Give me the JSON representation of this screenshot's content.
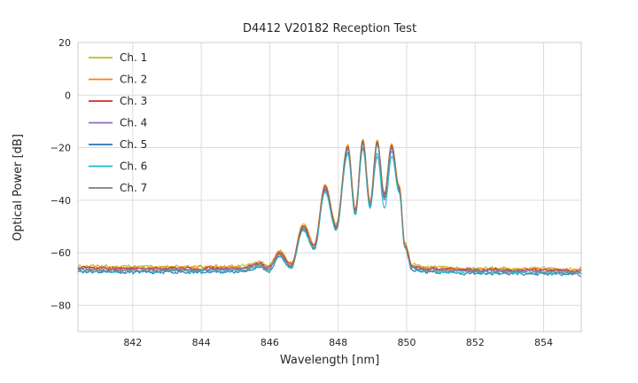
{
  "title": "D4412 V20182 Reception Test",
  "chart_data": {
    "type": "line",
    "title": "D4412 V20182 Reception Test",
    "xlabel": "Wavelength [nm]",
    "ylabel": "Optical Power [dB]",
    "xlim": [
      840.4,
      855.1
    ],
    "ylim": [
      -90,
      20
    ],
    "xticks": [
      842,
      844,
      846,
      848,
      850,
      852,
      854
    ],
    "yticks": [
      20,
      0,
      -20,
      -40,
      -60,
      -80
    ],
    "xtick_labels": [
      "842",
      "844",
      "846",
      "848",
      "850",
      "852",
      "854"
    ],
    "ytick_labels": [
      "20",
      "0",
      "−20",
      "−40",
      "−60",
      "−80"
    ],
    "grid": true,
    "legend_position": "upper left",
    "noise_floor_db": -66,
    "noise_amplitude_db": 0.45,
    "base_curve_control_points": [
      [
        840.4,
        -66.0
      ],
      [
        842.0,
        -66.2
      ],
      [
        844.0,
        -66.1
      ],
      [
        845.2,
        -66.0
      ],
      [
        845.7,
        -64.3
      ],
      [
        845.95,
        -65.8
      ],
      [
        846.3,
        -60.2
      ],
      [
        846.62,
        -64.8
      ],
      [
        846.98,
        -49.8
      ],
      [
        847.3,
        -57.5
      ],
      [
        847.62,
        -34.8
      ],
      [
        847.94,
        -50.0
      ],
      [
        848.28,
        -19.6
      ],
      [
        848.5,
        -44.0
      ],
      [
        848.72,
        -17.6
      ],
      [
        848.93,
        -41.0
      ],
      [
        849.14,
        -17.9
      ],
      [
        849.35,
        -38.0
      ],
      [
        849.56,
        -19.2
      ],
      [
        849.78,
        -35.0
      ],
      [
        849.95,
        -57.0
      ],
      [
        850.15,
        -65.2
      ],
      [
        850.6,
        -66.3
      ],
      [
        852.0,
        -66.6
      ],
      [
        854.0,
        -66.8
      ],
      [
        855.1,
        -67.0
      ]
    ],
    "series": [
      {
        "name": "Ch. 1",
        "color": "#bcbd22",
        "floor_offset_db": 0.9,
        "peak_offset_db": 0.8,
        "notch": null
      },
      {
        "name": "Ch. 2",
        "color": "#ff7f0e",
        "floor_offset_db": 0.4,
        "peak_offset_db": 0.4,
        "notch": null
      },
      {
        "name": "Ch. 3",
        "color": "#d62728",
        "floor_offset_db": 0.1,
        "peak_offset_db": 0.0,
        "notch": null
      },
      {
        "name": "Ch. 4",
        "color": "#9467bd",
        "floor_offset_db": -0.2,
        "peak_offset_db": -2.2,
        "notch": {
          "center_nm": 849.14,
          "sigma_nm": 0.16,
          "depth_db": 3.5
        }
      },
      {
        "name": "Ch. 5",
        "color": "#1f77b4",
        "floor_offset_db": -1.2,
        "peak_offset_db": -1.0,
        "notch": null
      },
      {
        "name": "Ch. 6",
        "color": "#17becf",
        "floor_offset_db": -0.8,
        "peak_offset_db": -3.0,
        "notch": {
          "center_nm": 849.35,
          "sigma_nm": 0.18,
          "depth_db": 5.0
        }
      },
      {
        "name": "Ch. 7",
        "color": "#7f7f7f",
        "floor_offset_db": -0.5,
        "peak_offset_db": -0.5,
        "notch": null
      }
    ]
  },
  "colors": {
    "background": "#ffffff",
    "grid": "#dcdcdc",
    "spine": "#cccccc",
    "text": "#262626"
  }
}
